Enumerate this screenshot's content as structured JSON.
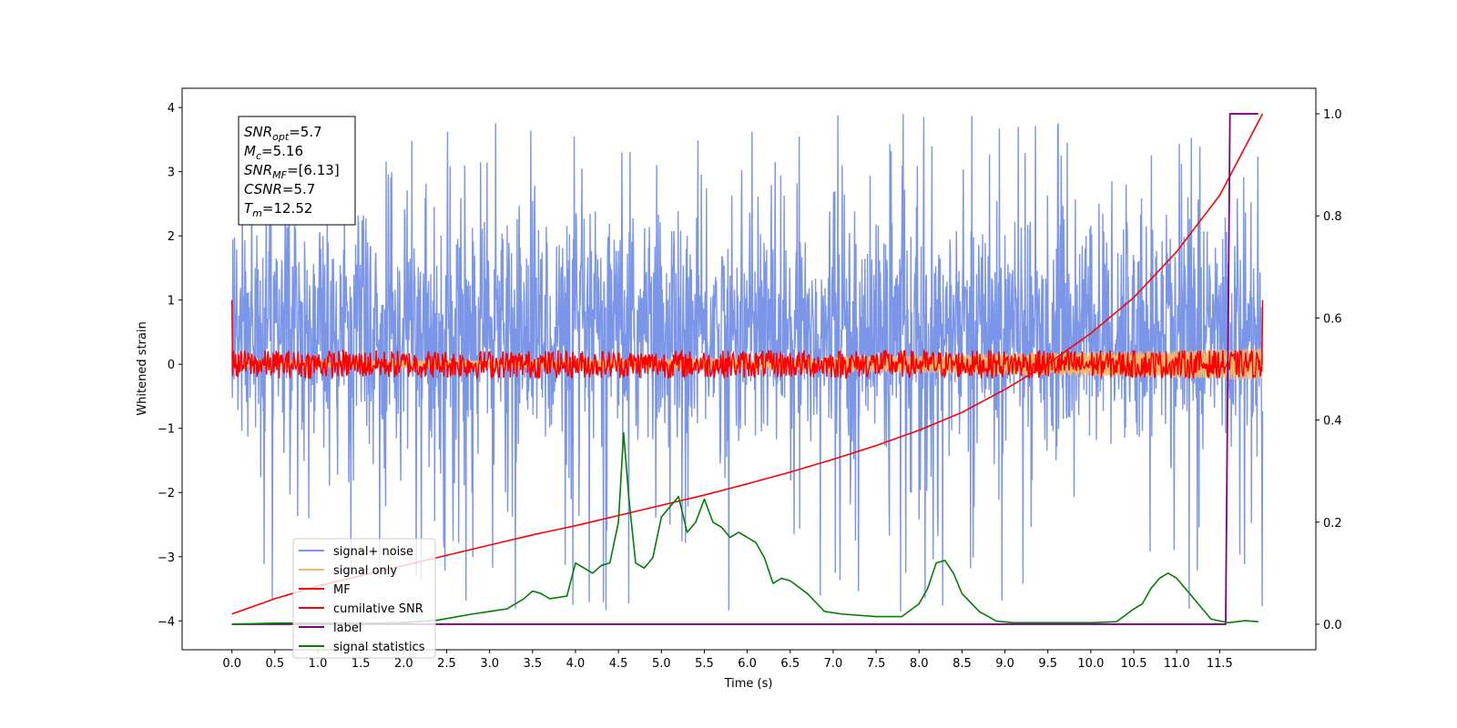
{
  "chart_data": {
    "type": "line",
    "xlabel": "Time (s)",
    "ylabel": "Whitened strain",
    "xlim": [
      -0.58,
      12.62
    ],
    "ylim": [
      -4.45,
      4.3
    ],
    "y2lim": [
      -0.05,
      1.05
    ],
    "x_ticks": [
      "0.0",
      "0.5",
      "1.0",
      "1.5",
      "2.0",
      "2.5",
      "3.0",
      "3.5",
      "4.0",
      "4.5",
      "5.0",
      "5.5",
      "6.0",
      "6.5",
      "7.0",
      "7.5",
      "8.0",
      "8.5",
      "9.0",
      "9.5",
      "10.0",
      "10.5",
      "11.0",
      "11.5"
    ],
    "y_ticks": [
      "4",
      "3",
      "2",
      "1",
      "0",
      "−1",
      "−2",
      "−3",
      "−4"
    ],
    "y2_ticks": [
      "1.0",
      "0.8",
      "0.6",
      "0.4",
      "0.2",
      "0.0"
    ],
    "info_box": [
      {
        "base": "SNR",
        "sub": "opt",
        "value": "=5.7"
      },
      {
        "base": "M",
        "sub": "c",
        "value": "=5.16"
      },
      {
        "base": "SNR",
        "sub": "MF",
        "value": "=[6.13]"
      },
      {
        "base": "CSNR",
        "sub": "",
        "value": "=5.7"
      },
      {
        "base": "T",
        "sub": "m",
        "value": "=12.52"
      }
    ],
    "series": [
      {
        "name": "signal+ noise",
        "color": "#7b96e8",
        "axis": "left",
        "x_range": [
          0.0,
          12.0
        ],
        "center": 0.5,
        "std": 1.05,
        "spike_max": 3.9,
        "spike_min": -3.9
      },
      {
        "name": "signal only",
        "color": "#f5b86a",
        "axis": "left",
        "x_range": [
          0.0,
          12.0
        ],
        "amplitude_start": 0.05,
        "amplitude_end": 0.25
      },
      {
        "name": "MF",
        "color": "#ff0000",
        "axis": "left",
        "x_range": [
          0.0,
          12.0
        ],
        "amplitude": 0.2,
        "start_value": 1.0,
        "end_value": 1.0
      },
      {
        "name": "cumilative SNR",
        "color": "#ff0000",
        "axis": "right",
        "x": [
          0.0,
          0.5,
          1.0,
          1.5,
          2.0,
          2.5,
          3.0,
          3.5,
          4.0,
          4.5,
          5.0,
          5.5,
          6.0,
          6.5,
          7.0,
          7.5,
          8.0,
          8.5,
          9.0,
          9.5,
          10.0,
          10.5,
          11.0,
          11.5,
          12.0
        ],
        "values": [
          0.02,
          0.05,
          0.075,
          0.095,
          0.115,
          0.135,
          0.155,
          0.175,
          0.193,
          0.213,
          0.233,
          0.253,
          0.275,
          0.298,
          0.323,
          0.35,
          0.38,
          0.415,
          0.46,
          0.51,
          0.57,
          0.64,
          0.73,
          0.84,
          1.0
        ]
      },
      {
        "name": "label",
        "color": "#800080",
        "axis": "right",
        "x": [
          0.0,
          11.57,
          11.62,
          11.95
        ],
        "values": [
          0.0,
          0.0,
          1.0,
          1.0
        ]
      },
      {
        "name": "signal statistics",
        "color": "#008000",
        "axis": "right",
        "x": [
          0.0,
          0.5,
          1.0,
          1.5,
          2.0,
          2.4,
          2.8,
          3.0,
          3.2,
          3.4,
          3.5,
          3.6,
          3.7,
          3.9,
          4.0,
          4.1,
          4.2,
          4.3,
          4.4,
          4.5,
          4.56,
          4.62,
          4.7,
          4.8,
          4.9,
          5.0,
          5.1,
          5.2,
          5.3,
          5.4,
          5.5,
          5.6,
          5.7,
          5.8,
          5.9,
          6.0,
          6.1,
          6.2,
          6.3,
          6.4,
          6.5,
          6.7,
          6.9,
          7.1,
          7.5,
          7.8,
          8.0,
          8.1,
          8.2,
          8.3,
          8.4,
          8.5,
          8.7,
          8.9,
          9.1,
          9.5,
          10.0,
          10.3,
          10.5,
          10.6,
          10.7,
          10.8,
          10.9,
          11.0,
          11.1,
          11.2,
          11.3,
          11.4,
          11.6,
          11.8,
          11.95
        ],
        "values": [
          0.0,
          0.002,
          0.002,
          0.002,
          0.003,
          0.008,
          0.02,
          0.025,
          0.03,
          0.05,
          0.065,
          0.06,
          0.05,
          0.055,
          0.12,
          0.11,
          0.1,
          0.115,
          0.12,
          0.2,
          0.375,
          0.25,
          0.12,
          0.11,
          0.13,
          0.21,
          0.23,
          0.25,
          0.18,
          0.2,
          0.245,
          0.2,
          0.19,
          0.17,
          0.18,
          0.17,
          0.16,
          0.13,
          0.08,
          0.09,
          0.085,
          0.06,
          0.025,
          0.02,
          0.015,
          0.015,
          0.04,
          0.07,
          0.12,
          0.125,
          0.1,
          0.06,
          0.025,
          0.006,
          0.003,
          0.003,
          0.003,
          0.005,
          0.03,
          0.04,
          0.07,
          0.09,
          0.1,
          0.09,
          0.07,
          0.05,
          0.03,
          0.01,
          0.003,
          0.007,
          0.005
        ]
      }
    ],
    "legend_placement": "lower-left",
    "grid": false
  }
}
